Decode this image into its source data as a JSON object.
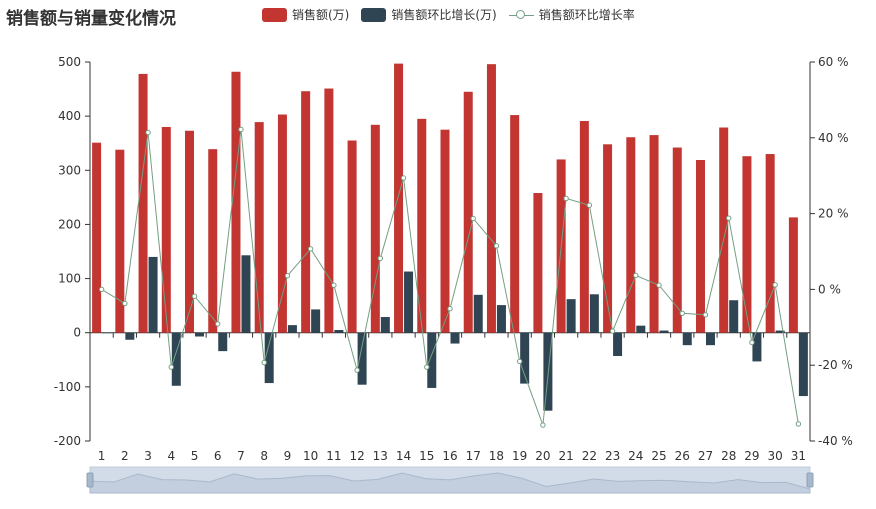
{
  "title": "销售额与销量变化情况",
  "legend": [
    {
      "name": "销售额(万)",
      "color": "#c23531",
      "kind": "bar"
    },
    {
      "name": "销售额环比增长(万)",
      "color": "#2f4554",
      "kind": "bar"
    },
    {
      "name": "销售额环比增长率",
      "color": "#749f83",
      "kind": "line"
    }
  ],
  "chart_data": {
    "type": "bar",
    "title": "销售额与销量变化情况",
    "categories": [
      "1",
      "2",
      "3",
      "4",
      "5",
      "6",
      "7",
      "8",
      "9",
      "10",
      "11",
      "12",
      "13",
      "14",
      "15",
      "16",
      "17",
      "18",
      "19",
      "20",
      "21",
      "22",
      "23",
      "24",
      "25",
      "26",
      "27",
      "28",
      "29",
      "30",
      "31"
    ],
    "y_left": {
      "min": -200,
      "max": 500,
      "ticks": [
        -200,
        -100,
        0,
        100,
        200,
        300,
        400,
        500
      ]
    },
    "y_right": {
      "min": -40,
      "max": 60,
      "ticks": [
        -40,
        -20,
        0,
        20,
        40,
        60
      ],
      "tick_labels": [
        "-40 %",
        "-20 %",
        "0 %",
        "20 %",
        "40 %",
        "60 %"
      ]
    },
    "series": [
      {
        "name": "销售额(万)",
        "color": "#c23531",
        "type": "bar",
        "axis": "left",
        "values": [
          351,
          338,
          478,
          380,
          373,
          339,
          482,
          389,
          403,
          446,
          451,
          355,
          384,
          497,
          395,
          375,
          445,
          496,
          402,
          258,
          320,
          391,
          348,
          361,
          365,
          342,
          319,
          379,
          326,
          330,
          213
        ]
      },
      {
        "name": "销售额环比增长(万)",
        "color": "#2f4554",
        "type": "bar",
        "axis": "left",
        "values": [
          0,
          -13,
          140,
          -98,
          -7,
          -34,
          143,
          -93,
          14,
          43,
          5,
          -96,
          29,
          113,
          -102,
          -20,
          70,
          51,
          -94,
          -144,
          62,
          71,
          -43,
          13,
          4,
          -23,
          -23,
          60,
          -53,
          4,
          -117
        ]
      },
      {
        "name": "销售额环比增长率",
        "color": "#749f83",
        "type": "line",
        "axis": "right",
        "values": [
          0,
          -3.7,
          41.4,
          -20.5,
          -1.8,
          -9.1,
          42.2,
          -19.3,
          3.6,
          10.7,
          1.1,
          -21.3,
          8.2,
          29.4,
          -20.5,
          -5.1,
          18.7,
          11.5,
          -19.0,
          -35.8,
          24.0,
          22.2,
          -11.0,
          3.7,
          1.1,
          -6.3,
          -6.7,
          18.8,
          -14.0,
          1.2,
          -35.5
        ]
      }
    ],
    "grid": false,
    "legend_position": "top"
  },
  "datazoom": {
    "start": 0,
    "end": 100
  }
}
